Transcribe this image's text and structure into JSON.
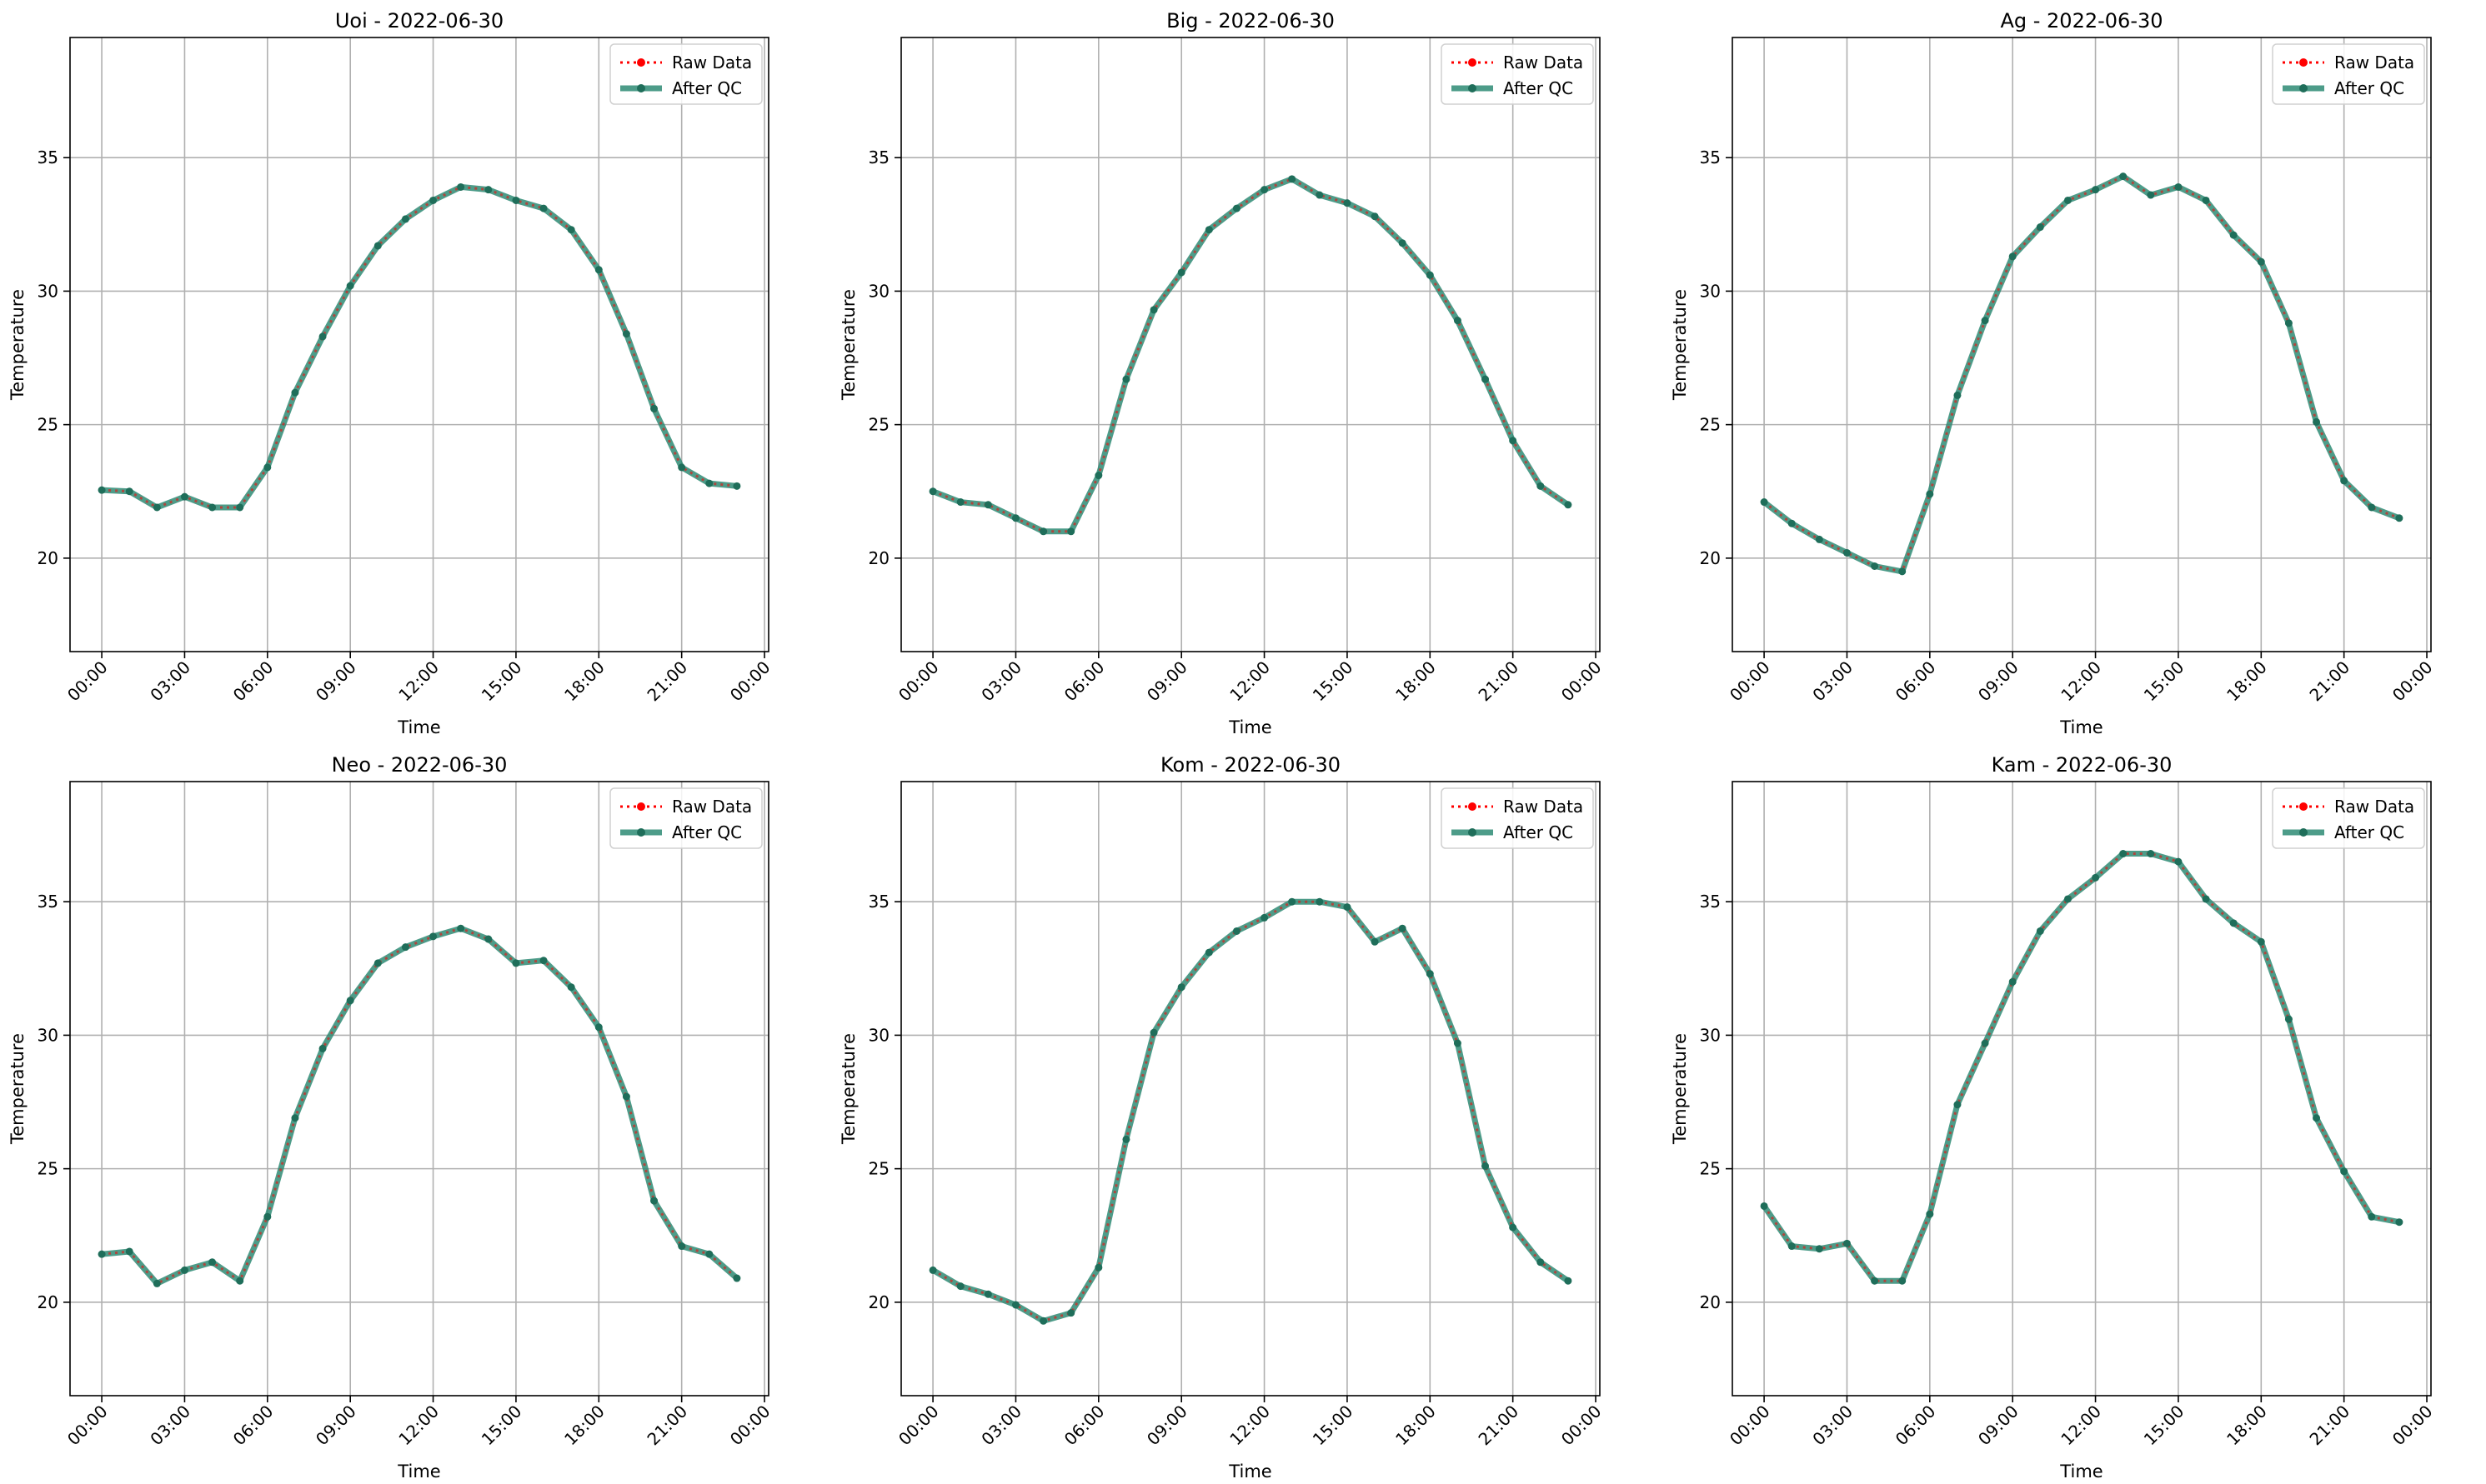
{
  "colors": {
    "raw": "#ff0000",
    "qc": "#2e8b74",
    "qc_point": "#1f6e5a",
    "grid": "#b0b0b0",
    "axis": "#000000"
  },
  "shared": {
    "xlabel": "Time",
    "ylabel": "Temperature",
    "ylim": [
      16.5,
      39.5
    ],
    "yticks": [
      20,
      25,
      30,
      35
    ],
    "xlim": [
      -1.15,
      24.15
    ],
    "xticks": [
      0,
      3,
      6,
      9,
      12,
      15,
      18,
      21,
      24
    ],
    "xtick_labels": [
      "00:00",
      "03:00",
      "06:00",
      "09:00",
      "12:00",
      "15:00",
      "18:00",
      "21:00",
      "00:00"
    ],
    "legend": {
      "raw_label": "Raw Data",
      "qc_label": "After QC",
      "position": "top-right"
    },
    "grid": true
  },
  "chart_data": [
    {
      "type": "line",
      "title": "Uoi - 2022-06-30",
      "x": [
        "00:00",
        "01:00",
        "02:00",
        "03:00",
        "04:00",
        "05:00",
        "06:00",
        "07:00",
        "08:00",
        "09:00",
        "10:00",
        "11:00",
        "12:00",
        "13:00",
        "14:00",
        "15:00",
        "16:00",
        "17:00",
        "18:00",
        "19:00",
        "20:00",
        "21:00",
        "22:00",
        "23:00"
      ],
      "series": [
        {
          "name": "Raw Data",
          "values": [
            22.55,
            22.5,
            21.9,
            22.3,
            21.9,
            21.9,
            23.4,
            26.2,
            28.3,
            30.2,
            31.7,
            32.7,
            33.4,
            33.9,
            33.8,
            33.4,
            33.1,
            32.3,
            30.8,
            28.4,
            25.6,
            23.4,
            22.8,
            22.7
          ]
        },
        {
          "name": "After QC",
          "values": [
            22.55,
            22.5,
            21.9,
            22.3,
            21.9,
            21.9,
            23.4,
            26.2,
            28.3,
            30.2,
            31.7,
            32.7,
            33.4,
            33.9,
            33.8,
            33.4,
            33.1,
            32.3,
            30.8,
            28.4,
            25.6,
            23.4,
            22.8,
            22.7
          ]
        }
      ]
    },
    {
      "type": "line",
      "title": "Big - 2022-06-30",
      "x": [
        "00:00",
        "01:00",
        "02:00",
        "03:00",
        "04:00",
        "05:00",
        "06:00",
        "07:00",
        "08:00",
        "09:00",
        "10:00",
        "11:00",
        "12:00",
        "13:00",
        "14:00",
        "15:00",
        "16:00",
        "17:00",
        "18:00",
        "19:00",
        "20:00",
        "21:00",
        "22:00",
        "23:00"
      ],
      "series": [
        {
          "name": "Raw Data",
          "values": [
            22.5,
            22.1,
            22.0,
            21.5,
            21.0,
            21.0,
            23.1,
            26.7,
            29.3,
            30.7,
            32.3,
            33.1,
            33.8,
            34.2,
            33.6,
            33.3,
            32.8,
            31.8,
            30.6,
            28.9,
            26.7,
            24.4,
            22.7,
            22.0
          ]
        },
        {
          "name": "After QC",
          "values": [
            22.5,
            22.1,
            22.0,
            21.5,
            21.0,
            21.0,
            23.1,
            26.7,
            29.3,
            30.7,
            32.3,
            33.1,
            33.8,
            34.2,
            33.6,
            33.3,
            32.8,
            31.8,
            30.6,
            28.9,
            26.7,
            24.4,
            22.7,
            22.0
          ]
        }
      ]
    },
    {
      "type": "line",
      "title": "Ag - 2022-06-30",
      "x": [
        "00:00",
        "01:00",
        "02:00",
        "03:00",
        "04:00",
        "05:00",
        "06:00",
        "07:00",
        "08:00",
        "09:00",
        "10:00",
        "11:00",
        "12:00",
        "13:00",
        "14:00",
        "15:00",
        "16:00",
        "17:00",
        "18:00",
        "19:00",
        "20:00",
        "21:00",
        "22:00",
        "23:00"
      ],
      "series": [
        {
          "name": "Raw Data",
          "values": [
            22.1,
            21.3,
            20.7,
            20.2,
            19.7,
            19.5,
            22.4,
            26.1,
            28.9,
            31.3,
            32.4,
            33.4,
            33.8,
            34.3,
            33.6,
            33.9,
            33.4,
            32.1,
            31.1,
            28.8,
            25.1,
            22.9,
            21.9,
            21.5
          ]
        },
        {
          "name": "After QC",
          "values": [
            22.1,
            21.3,
            20.7,
            20.2,
            19.7,
            19.5,
            22.4,
            26.1,
            28.9,
            31.3,
            32.4,
            33.4,
            33.8,
            34.3,
            33.6,
            33.9,
            33.4,
            32.1,
            31.1,
            28.8,
            25.1,
            22.9,
            21.9,
            21.5
          ]
        }
      ]
    },
    {
      "type": "line",
      "title": "Neo - 2022-06-30",
      "x": [
        "00:00",
        "01:00",
        "02:00",
        "03:00",
        "04:00",
        "05:00",
        "06:00",
        "07:00",
        "08:00",
        "09:00",
        "10:00",
        "11:00",
        "12:00",
        "13:00",
        "14:00",
        "15:00",
        "16:00",
        "17:00",
        "18:00",
        "19:00",
        "20:00",
        "21:00",
        "22:00",
        "23:00"
      ],
      "series": [
        {
          "name": "Raw Data",
          "values": [
            21.8,
            21.9,
            20.7,
            21.2,
            21.5,
            20.8,
            23.2,
            26.9,
            29.5,
            31.3,
            32.7,
            33.3,
            33.7,
            34.0,
            33.6,
            32.7,
            32.8,
            31.8,
            30.3,
            27.7,
            23.8,
            22.1,
            21.8,
            20.9
          ]
        },
        {
          "name": "After QC",
          "values": [
            21.8,
            21.9,
            20.7,
            21.2,
            21.5,
            20.8,
            23.2,
            26.9,
            29.5,
            31.3,
            32.7,
            33.3,
            33.7,
            34.0,
            33.6,
            32.7,
            32.8,
            31.8,
            30.3,
            27.7,
            23.8,
            22.1,
            21.8,
            20.9
          ]
        }
      ]
    },
    {
      "type": "line",
      "title": "Kom - 2022-06-30",
      "x": [
        "00:00",
        "01:00",
        "02:00",
        "03:00",
        "04:00",
        "05:00",
        "06:00",
        "07:00",
        "08:00",
        "09:00",
        "10:00",
        "11:00",
        "12:00",
        "13:00",
        "14:00",
        "15:00",
        "16:00",
        "17:00",
        "18:00",
        "19:00",
        "20:00",
        "21:00",
        "22:00",
        "23:00"
      ],
      "series": [
        {
          "name": "Raw Data",
          "values": [
            21.2,
            20.6,
            20.3,
            19.9,
            19.3,
            19.6,
            21.3,
            26.1,
            30.1,
            31.8,
            33.1,
            33.9,
            34.4,
            35.0,
            35.0,
            34.8,
            33.5,
            34.0,
            32.3,
            29.7,
            25.1,
            22.8,
            21.5,
            20.8
          ]
        },
        {
          "name": "After QC",
          "values": [
            21.2,
            20.6,
            20.3,
            19.9,
            19.3,
            19.6,
            21.3,
            26.1,
            30.1,
            31.8,
            33.1,
            33.9,
            34.4,
            35.0,
            35.0,
            34.8,
            33.5,
            34.0,
            32.3,
            29.7,
            25.1,
            22.8,
            21.5,
            20.8
          ]
        }
      ]
    },
    {
      "type": "line",
      "title": "Kam - 2022-06-30",
      "x": [
        "00:00",
        "01:00",
        "02:00",
        "03:00",
        "04:00",
        "05:00",
        "06:00",
        "07:00",
        "08:00",
        "09:00",
        "10:00",
        "11:00",
        "12:00",
        "13:00",
        "14:00",
        "15:00",
        "16:00",
        "17:00",
        "18:00",
        "19:00",
        "20:00",
        "21:00",
        "22:00",
        "23:00"
      ],
      "series": [
        {
          "name": "Raw Data",
          "values": [
            23.6,
            22.1,
            22.0,
            22.2,
            20.8,
            20.8,
            23.3,
            27.4,
            29.7,
            32.0,
            33.9,
            35.1,
            35.9,
            36.8,
            36.8,
            36.5,
            35.1,
            34.2,
            33.5,
            30.6,
            26.9,
            24.9,
            23.2,
            23.0
          ]
        },
        {
          "name": "After QC",
          "values": [
            23.6,
            22.1,
            22.0,
            22.2,
            20.8,
            20.8,
            23.3,
            27.4,
            29.7,
            32.0,
            33.9,
            35.1,
            35.9,
            36.8,
            36.8,
            36.5,
            35.1,
            34.2,
            33.5,
            30.6,
            26.9,
            24.9,
            23.2,
            23.0
          ]
        }
      ]
    }
  ]
}
